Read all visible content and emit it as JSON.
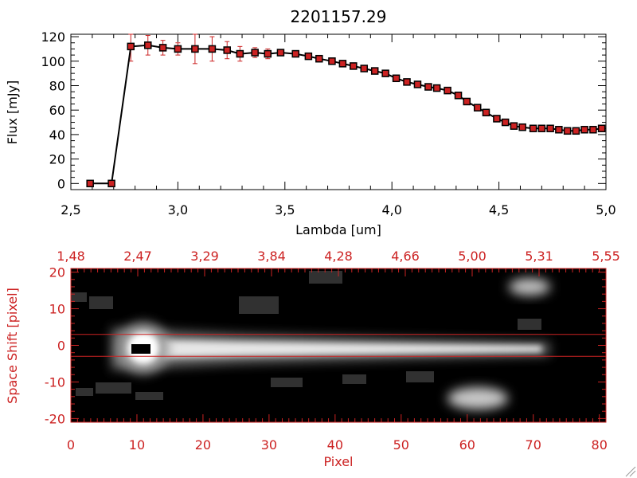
{
  "colors": {
    "axis": "#000000",
    "marker": "#cc2222",
    "errorbar": "#cc2222",
    "accent": "#cc2222",
    "image_bg": "#000000"
  },
  "chart_data": [
    {
      "type": "line",
      "title": "2201157.29",
      "xlabel": "Lambda [um]",
      "ylabel": "Flux [mJy]",
      "xlim": [
        2.5,
        5.0
      ],
      "ylim": [
        -5,
        122
      ],
      "x_ticks": [
        2.5,
        3.0,
        3.5,
        4.0,
        4.5,
        5.0
      ],
      "x_tick_labels": [
        "2,5",
        "3,0",
        "3,5",
        "4,0",
        "4,5",
        "5,0"
      ],
      "y_ticks": [
        0,
        20,
        40,
        60,
        80,
        100,
        120
      ],
      "y_tick_labels": [
        "0",
        "20",
        "40",
        "60",
        "80",
        "100",
        "120"
      ],
      "series": [
        {
          "x": [
            2.59,
            2.69,
            2.78,
            2.86,
            2.93,
            3.0,
            3.08,
            3.16,
            3.23,
            3.29,
            3.36,
            3.42,
            3.48,
            3.55,
            3.61,
            3.66,
            3.72,
            3.77,
            3.82,
            3.87,
            3.92,
            3.97,
            4.02,
            4.07,
            4.12,
            4.17,
            4.21,
            4.26,
            4.31,
            4.35,
            4.4,
            4.44,
            4.49,
            4.53,
            4.57,
            4.61,
            4.66,
            4.7,
            4.74,
            4.78,
            4.82,
            4.86,
            4.9,
            4.94,
            4.98
          ],
          "y": [
            0,
            0,
            112,
            113,
            111,
            110,
            110,
            110,
            109,
            106,
            107,
            106,
            107,
            106,
            104,
            102,
            100,
            98,
            96,
            94,
            92,
            90,
            86,
            83,
            81,
            79,
            78,
            76,
            72,
            67,
            62,
            58,
            53,
            50,
            47,
            46,
            45,
            45,
            45,
            44,
            43,
            43,
            44,
            44,
            45
          ],
          "yerr": [
            0,
            0,
            12,
            8,
            6,
            5,
            12,
            10,
            7,
            6,
            4,
            4,
            2,
            2,
            2,
            1,
            1,
            1,
            1,
            1,
            1,
            1,
            1,
            1,
            1,
            1,
            1,
            1,
            1,
            1,
            1,
            1,
            1,
            1,
            1,
            1,
            1,
            1,
            1,
            1,
            1,
            1,
            2,
            2,
            2
          ]
        }
      ]
    },
    {
      "type": "heatmap",
      "xlabel": "Pixel",
      "ylabel": "Space Shift [pixel]",
      "xlim": [
        0,
        81
      ],
      "ylim": [
        -21,
        21
      ],
      "x_ticks": [
        0,
        10,
        20,
        30,
        40,
        50,
        60,
        70,
        80
      ],
      "x_tick_labels": [
        "0",
        "10",
        "20",
        "30",
        "40",
        "50",
        "60",
        "70",
        "80"
      ],
      "y_ticks": [
        -20,
        -10,
        0,
        10,
        20
      ],
      "y_tick_labels": [
        "-20",
        "-10",
        "0",
        "10",
        "20"
      ],
      "top_axis_labels": [
        "1,48",
        "2,47",
        "3,29",
        "3,84",
        "4,28",
        "4,66",
        "5,00",
        "5,31",
        "5,55"
      ],
      "bands": [
        3,
        -3
      ],
      "grid": false
    }
  ]
}
